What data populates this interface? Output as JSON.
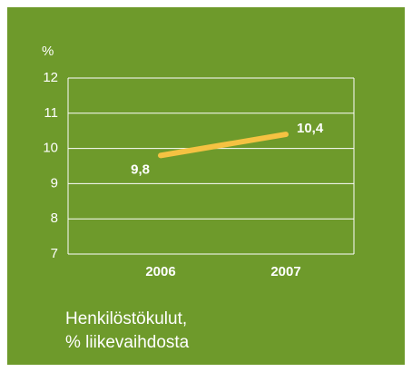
{
  "chart_data": {
    "type": "line",
    "title": [
      "Henkilöstökulut,",
      "% liikevaihdosta"
    ],
    "y_label": "%",
    "categories": [
      "2006",
      "2007"
    ],
    "values": [
      9.8,
      10.4
    ],
    "value_labels": [
      "9,8",
      "10,4"
    ],
    "color": "#f5c242",
    "ylim": [
      7,
      12
    ],
    "yticks": [
      7,
      8,
      9,
      10,
      11,
      12
    ],
    "grid": true
  }
}
